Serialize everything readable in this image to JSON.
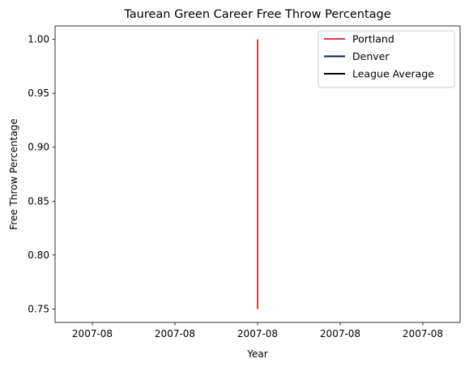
{
  "chart_data": {
    "type": "line",
    "title": "Taurean Green Career Free Throw Percentage",
    "xlabel": "Year",
    "ylabel": "Free Throw Percentage",
    "x_tick_labels": [
      "2007-08",
      "2007-08",
      "2007-08",
      "2007-08",
      "2007-08"
    ],
    "ylim": [
      0.7375,
      1.0125
    ],
    "y_ticks": [
      0.75,
      0.8,
      0.85,
      0.9,
      0.95,
      1.0
    ],
    "y_tick_labels": [
      "0.75",
      "0.80",
      "0.85",
      "0.90",
      "0.95",
      "1.00"
    ],
    "series": [
      {
        "name": "Portland",
        "color": "#E03A3E",
        "x": [
          "2007-08",
          "2007-08"
        ],
        "y": [
          0.75,
          1.0
        ]
      },
      {
        "name": "Denver",
        "color": "#0E2240",
        "x": [],
        "y": []
      },
      {
        "name": "League Average",
        "color": "#000000",
        "x": [],
        "y": []
      }
    ],
    "legend_position": "upper-right",
    "grid": false
  }
}
